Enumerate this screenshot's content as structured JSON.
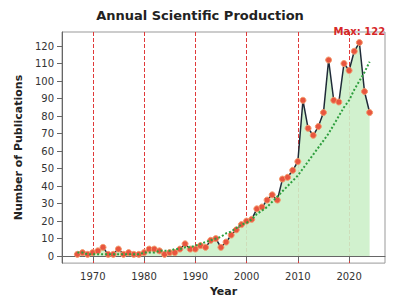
{
  "chart_data": {
    "type": "line",
    "title": "Annual Scientific Production",
    "x_label": "Year",
    "y_label": "Number of Publications",
    "x": [
      1967,
      1968,
      1969,
      1970,
      1971,
      1972,
      1973,
      1974,
      1975,
      1976,
      1977,
      1978,
      1979,
      1980,
      1981,
      1982,
      1983,
      1984,
      1985,
      1986,
      1987,
      1988,
      1989,
      1990,
      1991,
      1992,
      1993,
      1994,
      1995,
      1996,
      1997,
      1998,
      1999,
      2000,
      2001,
      2002,
      2003,
      2004,
      2005,
      2006,
      2007,
      2008,
      2009,
      2010,
      2011,
      2012,
      2013,
      2014,
      2015,
      2016,
      2017,
      2018,
      2019,
      2020,
      2021,
      2022,
      2023,
      2024
    ],
    "series": [
      {
        "type": "area",
        "color": "#1f2a38",
        "marker": "circle",
        "values": [
          1,
          2,
          1,
          2,
          3,
          5,
          1,
          1,
          4,
          1,
          2,
          1,
          1,
          2,
          4,
          4,
          3,
          1,
          2,
          2,
          4,
          7,
          4,
          4,
          6,
          5,
          9,
          10,
          5,
          8,
          12,
          15,
          18,
          20,
          21,
          27,
          28,
          32,
          35,
          32,
          44,
          45,
          49,
          54,
          89,
          73,
          69,
          74,
          82,
          112,
          89,
          88,
          110,
          106,
          117,
          122,
          94,
          82
        ]
      },
      {
        "type": "line",
        "color": "#2e9e3e",
        "marker": "none",
        "line_style": "dotted",
        "values": [
          2,
          2,
          1,
          1,
          1,
          1,
          1,
          1,
          1,
          1,
          1,
          1,
          1,
          2,
          2,
          2,
          3,
          3,
          3,
          4,
          4,
          5,
          5,
          6,
          7,
          8,
          9,
          10,
          11,
          13,
          14,
          16,
          18,
          19,
          21,
          24,
          26,
          28,
          31,
          34,
          37,
          40,
          43,
          46,
          50,
          54,
          58,
          62,
          66,
          70,
          75,
          80,
          85,
          89,
          95,
          100,
          105,
          111
        ]
      }
    ],
    "xlim": [
      1964,
      2027
    ],
    "xticks": [
      1970,
      1980,
      1990,
      2000,
      2010,
      2020
    ],
    "ylim": [
      -4,
      128
    ],
    "yticks": [
      0,
      10,
      20,
      30,
      40,
      50,
      60,
      70,
      80,
      90,
      100,
      110,
      120
    ],
    "grid": "x",
    "annotations": [
      {
        "text": "Max: 122",
        "x": 2022,
        "y": 122
      }
    ]
  }
}
